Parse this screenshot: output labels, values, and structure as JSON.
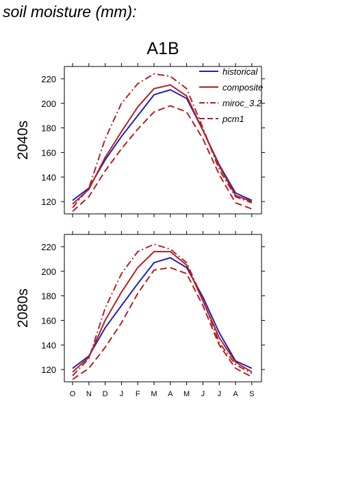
{
  "page_title": "soil moisture (mm):",
  "scenario_title": "A1B",
  "colors": {
    "historical": "#1f1fbf",
    "models": "#b51f1f",
    "axis": "#000000"
  },
  "chart_data": [
    {
      "type": "line",
      "panel_label": "2040s",
      "categories": [
        "O",
        "N",
        "D",
        "J",
        "F",
        "M",
        "A",
        "M",
        "J",
        "J",
        "A",
        "S"
      ],
      "ylim": [
        110,
        230
      ],
      "yticks": [
        120,
        140,
        160,
        180,
        200,
        220
      ],
      "grid": false,
      "legend": {
        "position": "top-right",
        "entries": [
          "historical",
          "composite",
          "miroc_3.2",
          "pcm1"
        ]
      },
      "series": [
        {
          "name": "historical",
          "style": "solid",
          "color": "#1f1fbf",
          "values": [
            121,
            131,
            154,
            173,
            190,
            207,
            211,
            204,
            178,
            150,
            127,
            121
          ]
        },
        {
          "name": "composite",
          "style": "solid",
          "color": "#b51f1f",
          "values": [
            118,
            130,
            156,
            177,
            197,
            212,
            215,
            206,
            178,
            149,
            125,
            120
          ]
        },
        {
          "name": "miroc_3.2",
          "style": "dashdot",
          "color": "#b51f1f",
          "values": [
            115,
            131,
            171,
            200,
            216,
            224,
            222,
            212,
            180,
            146,
            124,
            119
          ]
        },
        {
          "name": "pcm1",
          "style": "dashed",
          "color": "#b51f1f",
          "values": [
            112,
            124,
            145,
            163,
            179,
            193,
            198,
            193,
            171,
            142,
            119,
            114
          ]
        }
      ]
    },
    {
      "type": "line",
      "panel_label": "2080s",
      "categories": [
        "O",
        "N",
        "D",
        "J",
        "F",
        "M",
        "A",
        "M",
        "J",
        "J",
        "A",
        "S"
      ],
      "ylim": [
        110,
        230
      ],
      "yticks": [
        120,
        140,
        160,
        180,
        200,
        220
      ],
      "grid": false,
      "series": [
        {
          "name": "historical",
          "style": "solid",
          "color": "#1f1fbf",
          "values": [
            121,
            131,
            154,
            172,
            190,
            207,
            211,
            203,
            179,
            150,
            127,
            121
          ]
        },
        {
          "name": "composite",
          "style": "solid",
          "color": "#b51f1f",
          "values": [
            118,
            130,
            160,
            183,
            203,
            216,
            216,
            205,
            176,
            146,
            126,
            118
          ]
        },
        {
          "name": "miroc_3.2",
          "style": "dashdot",
          "color": "#b51f1f",
          "values": [
            115,
            129,
            170,
            198,
            216,
            222,
            218,
            207,
            177,
            142,
            124,
            117
          ]
        },
        {
          "name": "pcm1",
          "style": "dashed",
          "color": "#b51f1f",
          "values": [
            112,
            121,
            138,
            158,
            182,
            201,
            203,
            198,
            172,
            140,
            121,
            114
          ]
        }
      ]
    }
  ]
}
